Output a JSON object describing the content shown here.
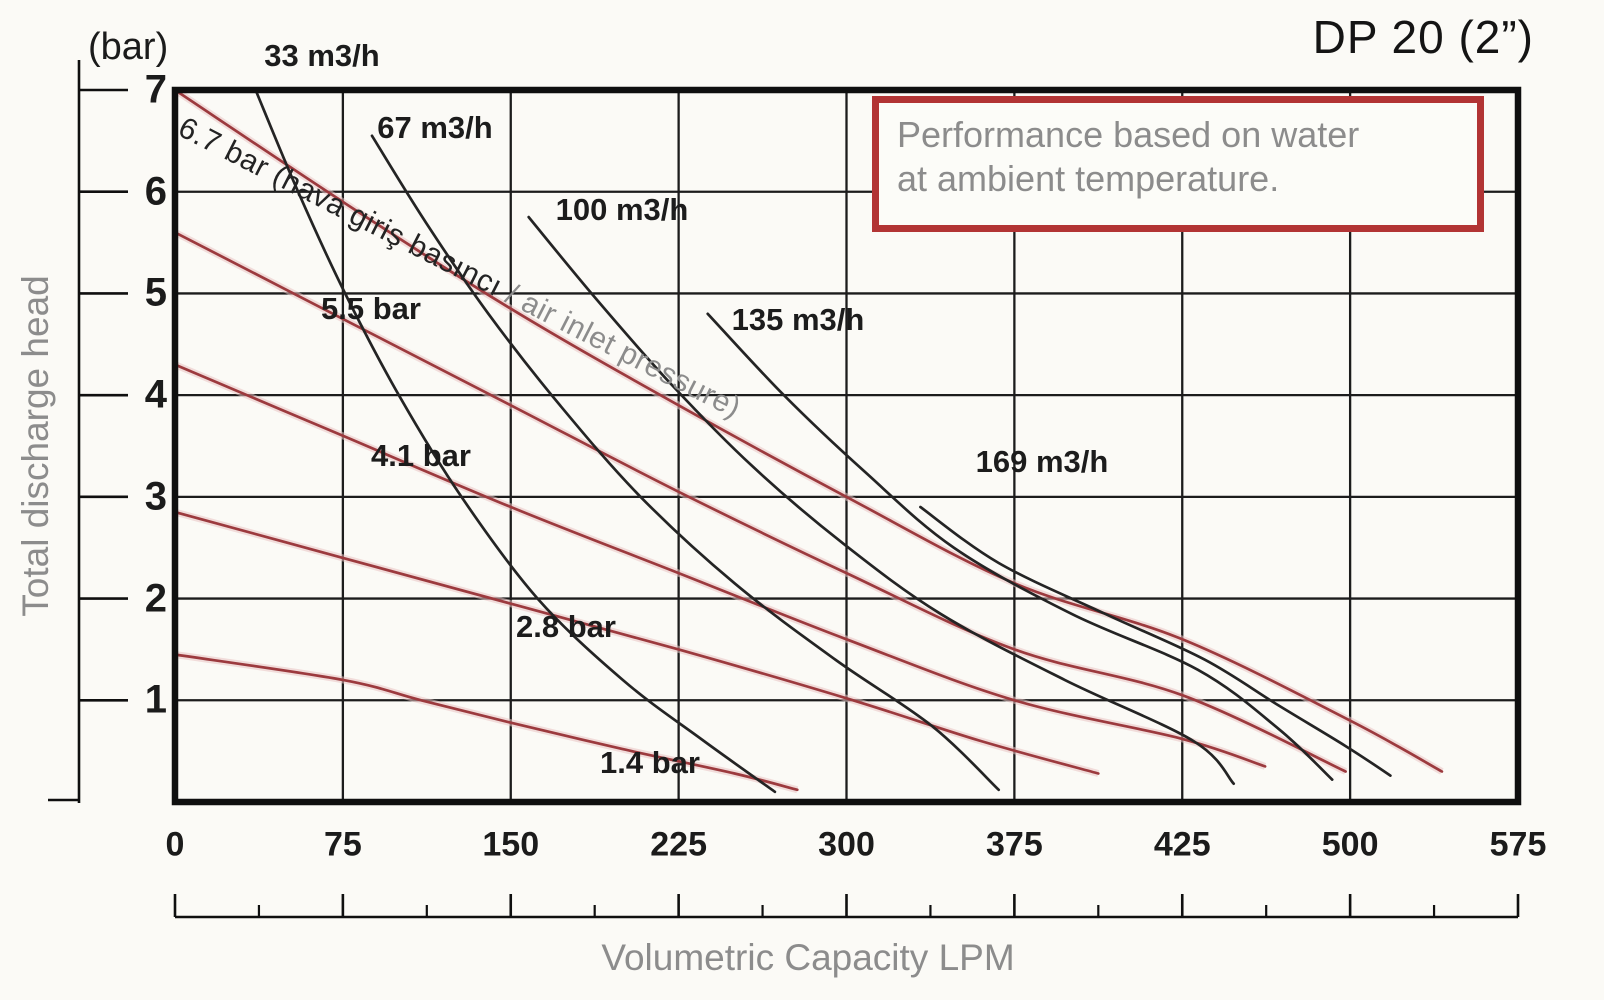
{
  "title": "DP 20 (2”)",
  "note": {
    "lines": [
      "Performance based on water",
      "at ambient temperature."
    ]
  },
  "y_axis": {
    "unit_label": "(bar)",
    "title": "Total discharge head",
    "ticks": [
      "7",
      "6",
      "5",
      "4",
      "3",
      "2",
      "1"
    ]
  },
  "x_axis": {
    "title": "Volumetric Capacity LPM",
    "ticks": [
      "0",
      "75",
      "150",
      "225",
      "300",
      "375",
      "425",
      "500",
      "575"
    ]
  },
  "colors": {
    "red_curve": "#9c3a3e",
    "red_halo": "#eac3c3",
    "black_curve": "#242424",
    "grid": "#1c1c1c",
    "frame": "#0f0f0f",
    "note_border": "#b23434",
    "gray_text": "#8c8c8c"
  },
  "chart_data": {
    "type": "line",
    "title": "DP 20 (2”)",
    "xlabel": "Volumetric Capacity LPM",
    "ylabel": "Total discharge head (bar)",
    "x_tick_values": [
      0,
      75,
      150,
      225,
      300,
      375,
      425,
      500,
      575
    ],
    "y_tick_values": [
      1,
      2,
      3,
      4,
      5,
      6,
      7
    ],
    "y_range": [
      0,
      7
    ],
    "grid": true,
    "series": [
      {
        "id": "r67",
        "family": "air_inlet_pressure",
        "color": "#9c3a3e",
        "label_parts": [
          "6.7 bar (hava giriş basıncı",
          " / air inlet pressure)"
        ],
        "points": [
          [
            0,
            7
          ],
          [
            75,
            5.9
          ],
          [
            150,
            4.85
          ],
          [
            225,
            3.9
          ],
          [
            300,
            3.0
          ],
          [
            375,
            2.15
          ],
          [
            425,
            1.6
          ],
          [
            500,
            0.8
          ],
          [
            541,
            0.3
          ]
        ]
      },
      {
        "id": "r55",
        "family": "air_inlet_pressure",
        "color": "#9c3a3e",
        "label": "5.5 bar",
        "points": [
          [
            0,
            5.6
          ],
          [
            75,
            4.75
          ],
          [
            150,
            3.9
          ],
          [
            225,
            3.05
          ],
          [
            300,
            2.25
          ],
          [
            375,
            1.5
          ],
          [
            425,
            1.05
          ],
          [
            498,
            0.3
          ]
        ]
      },
      {
        "id": "r41",
        "family": "air_inlet_pressure",
        "color": "#9c3a3e",
        "label": "4.1 bar",
        "points": [
          [
            0,
            4.3
          ],
          [
            75,
            3.6
          ],
          [
            150,
            2.9
          ],
          [
            225,
            2.25
          ],
          [
            300,
            1.6
          ],
          [
            375,
            1.0
          ],
          [
            425,
            0.62
          ],
          [
            462,
            0.35
          ]
        ]
      },
      {
        "id": "r28",
        "family": "air_inlet_pressure",
        "color": "#9c3a3e",
        "label": "2.8 bar",
        "points": [
          [
            0,
            2.85
          ],
          [
            75,
            2.4
          ],
          [
            150,
            1.95
          ],
          [
            225,
            1.5
          ],
          [
            300,
            1.02
          ],
          [
            360,
            0.6
          ],
          [
            400,
            0.28
          ]
        ]
      },
      {
        "id": "r14",
        "family": "air_inlet_pressure",
        "color": "#9c3a3e",
        "label": "1.4 bar",
        "points": [
          [
            0,
            1.45
          ],
          [
            75,
            1.2
          ],
          [
            110,
            1.0
          ],
          [
            150,
            0.78
          ],
          [
            200,
            0.52
          ],
          [
            250,
            0.28
          ],
          [
            278,
            0.12
          ]
        ]
      },
      {
        "id": "b33",
        "family": "air_consumption",
        "color": "#242424",
        "label": "33 m3/h",
        "points": [
          [
            36,
            7
          ],
          [
            55,
            6
          ],
          [
            76,
            5
          ],
          [
            100,
            4
          ],
          [
            128,
            3
          ],
          [
            162,
            2
          ],
          [
            200,
            1.2
          ],
          [
            235,
            0.62
          ],
          [
            268,
            0.1
          ]
        ]
      },
      {
        "id": "b67",
        "family": "air_consumption",
        "color": "#242424",
        "label": "67 m3/h",
        "points": [
          [
            88,
            6.55
          ],
          [
            112,
            5.7
          ],
          [
            140,
            4.8
          ],
          [
            172,
            3.9
          ],
          [
            208,
            3.0
          ],
          [
            250,
            2.15
          ],
          [
            295,
            1.4
          ],
          [
            338,
            0.75
          ],
          [
            368,
            0.12
          ]
        ]
      },
      {
        "id": "b100",
        "family": "air_consumption",
        "color": "#242424",
        "label": "100 m3/h",
        "points": [
          [
            158,
            5.75
          ],
          [
            188,
            4.95
          ],
          [
            222,
            4.1
          ],
          [
            258,
            3.3
          ],
          [
            298,
            2.55
          ],
          [
            342,
            1.85
          ],
          [
            390,
            1.2
          ],
          [
            430,
            0.6
          ],
          [
            448,
            0.18
          ]
        ]
      },
      {
        "id": "b135",
        "family": "air_consumption",
        "color": "#242424",
        "label": "135 m3/h",
        "points": [
          [
            238,
            4.8
          ],
          [
            272,
            4.0
          ],
          [
            308,
            3.25
          ],
          [
            348,
            2.5
          ],
          [
            392,
            1.85
          ],
          [
            432,
            1.3
          ],
          [
            468,
            0.72
          ],
          [
            492,
            0.22
          ]
        ]
      },
      {
        "id": "b169",
        "family": "air_consumption",
        "color": "#242424",
        "label": "169 m3/h",
        "points": [
          [
            333,
            2.9
          ],
          [
            368,
            2.35
          ],
          [
            402,
            1.85
          ],
          [
            435,
            1.4
          ],
          [
            468,
            0.95
          ],
          [
            498,
            0.55
          ],
          [
            518,
            0.26
          ]
        ]
      }
    ]
  }
}
